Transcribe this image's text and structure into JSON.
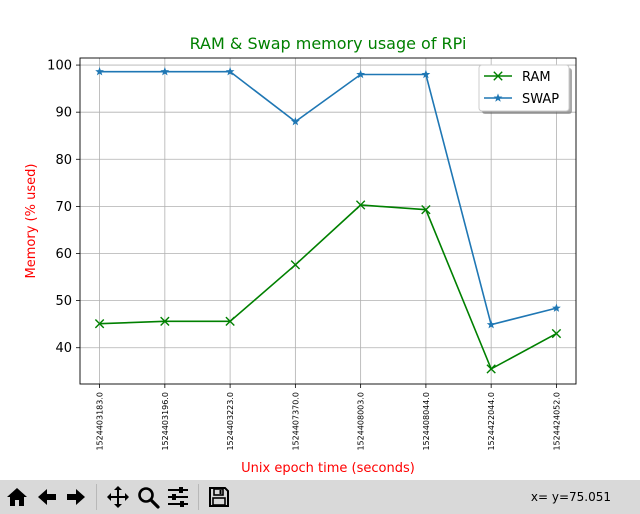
{
  "chart_data": {
    "type": "line",
    "title": "RAM & Swap memory usage of RPi",
    "xlabel": "Unix epoch time (seconds)",
    "ylabel": "Memory (% used)",
    "categories": [
      "1524403183.0",
      "1524403196.0",
      "1524403223.0",
      "1524407370.0",
      "1524408003.0",
      "1524408044.0",
      "1524422044.0",
      "1524424052.0"
    ],
    "yticks": [
      "40",
      "50",
      "60",
      "70",
      "80",
      "90",
      "100"
    ],
    "ylim": [
      32.3,
      101.5
    ],
    "grid": true,
    "legend_position": "top-right",
    "series": [
      {
        "name": "RAM",
        "values": [
          45.1,
          45.6,
          45.6,
          57.6,
          70.3,
          69.3,
          35.5,
          43.0
        ],
        "color": "#008000",
        "marker": "x"
      },
      {
        "name": "SWAP",
        "values": [
          98.6,
          98.6,
          98.6,
          88.0,
          98.0,
          98.0,
          44.9,
          48.4
        ],
        "color": "#1f77b4",
        "marker": "star"
      }
    ],
    "title_color": "#008000",
    "label_color": "#ff0000"
  },
  "toolbar": {
    "buttons": [
      {
        "name": "home-button",
        "icon": "home-icon"
      },
      {
        "name": "back-button",
        "icon": "arrow-left-icon"
      },
      {
        "name": "forward-button",
        "icon": "arrow-right-icon"
      },
      {
        "name": "pan-button",
        "icon": "move-icon"
      },
      {
        "name": "zoom-button",
        "icon": "zoom-icon"
      },
      {
        "name": "configure-subplots-button",
        "icon": "sliders-icon"
      },
      {
        "name": "save-button",
        "icon": "save-icon"
      }
    ],
    "coords": "x= y=75.051"
  }
}
